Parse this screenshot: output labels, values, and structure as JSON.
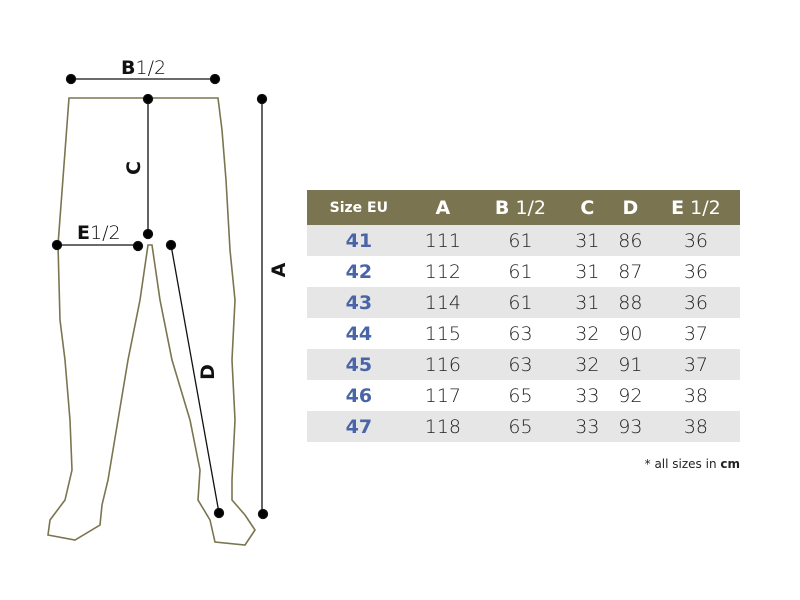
{
  "diagram": {
    "labels": {
      "a": "A",
      "b_letter": "B",
      "b_frac": "1/2",
      "c": "C",
      "d": "D",
      "e_letter": "E",
      "e_frac": "1/2"
    },
    "outline_color": "#7a7550"
  },
  "table": {
    "headers": [
      {
        "letter": "Size EU",
        "frac": ""
      },
      {
        "letter": "A",
        "frac": ""
      },
      {
        "letter": "B",
        "frac": " 1/2"
      },
      {
        "letter": "C",
        "frac": ""
      },
      {
        "letter": "D",
        "frac": ""
      },
      {
        "letter": "E",
        "frac": " 1/2"
      }
    ],
    "rows": [
      [
        "41",
        "111",
        "61",
        "31",
        "86",
        "36"
      ],
      [
        "42",
        "112",
        "61",
        "31",
        "87",
        "36"
      ],
      [
        "43",
        "114",
        "61",
        "31",
        "88",
        "36"
      ],
      [
        "44",
        "115",
        "63",
        "32",
        "90",
        "37"
      ],
      [
        "45",
        "116",
        "63",
        "32",
        "91",
        "37"
      ],
      [
        "46",
        "117",
        "65",
        "33",
        "92",
        "38"
      ],
      [
        "47",
        "118",
        "65",
        "33",
        "93",
        "38"
      ]
    ],
    "header_color": "#7a7550",
    "size_color": "#4a64a8"
  },
  "note": {
    "prefix": "* all sizes in ",
    "unit": "cm"
  }
}
